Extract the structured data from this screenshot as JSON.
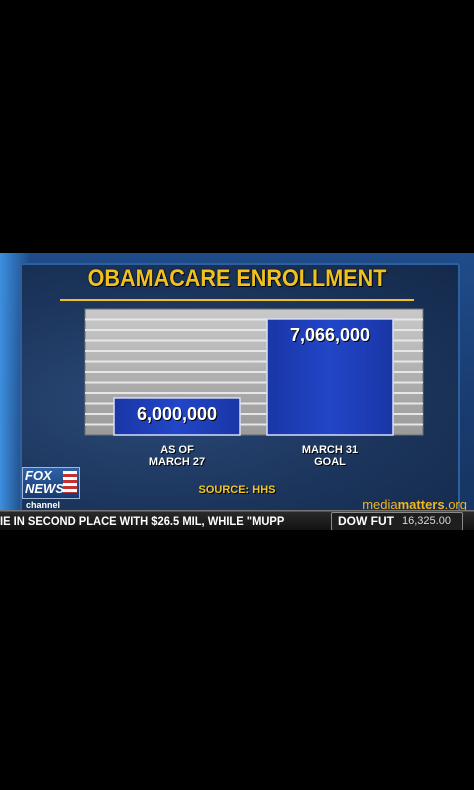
{
  "chart_data": {
    "type": "bar",
    "title": "OBAMACARE ENROLLMENT",
    "categories": [
      [
        "AS OF",
        "MARCH 27"
      ],
      [
        "MARCH 31",
        "GOAL"
      ]
    ],
    "values": [
      6000000,
      7066000
    ],
    "data_labels": [
      "6,000,000",
      "7,066,000"
    ],
    "ylim": [
      5500000,
      7200000
    ],
    "grid": true,
    "bar_color": "#1e3fb8",
    "source": "SOURCE: HHS"
  },
  "branding": {
    "logo_fox": "FOX",
    "logo_news": "NEWS",
    "logo_channel": "channel",
    "watermark_light": "media",
    "watermark_bold": "matters",
    "watermark_suffix": ".org"
  },
  "ticker": {
    "text": "IE IN SECOND PLACE WITH $26.5 MIL, WHILE \"MUPP",
    "dow_label": "DOW FUT",
    "dow_value": "16,325.00"
  },
  "colors": {
    "title": "#f1c21f",
    "background": "#1f4c8a"
  }
}
